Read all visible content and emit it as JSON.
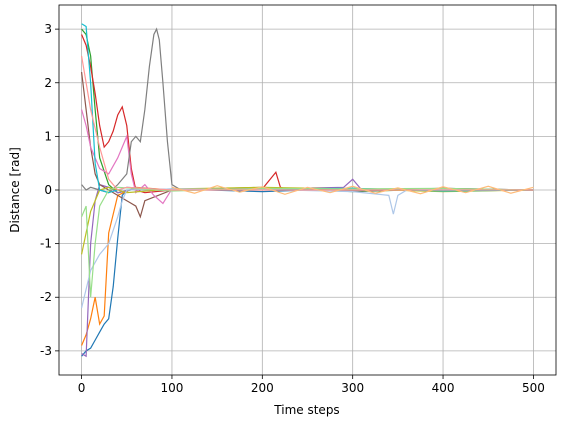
{
  "chart_data": {
    "type": "line",
    "xlabel": "Time steps",
    "ylabel": "Distance [rad]",
    "xlim": [
      -25,
      525
    ],
    "ylim": [
      -3.45,
      3.45
    ],
    "xticks": [
      0,
      100,
      200,
      300,
      400,
      500
    ],
    "yticks": [
      -3,
      -2,
      -1,
      0,
      1,
      2,
      3
    ],
    "grid": true,
    "series": [
      {
        "color": "#1f77b4",
        "x": [
          0,
          5,
          10,
          15,
          20,
          25,
          30,
          35,
          40,
          45,
          50,
          100,
          200,
          300,
          400,
          500
        ],
        "values": [
          -3.1,
          -3.0,
          -2.95,
          -2.8,
          -2.65,
          -2.5,
          -2.4,
          -1.8,
          -0.9,
          -0.1,
          0,
          0.02,
          -0.03,
          0.03,
          -0.02,
          0
        ]
      },
      {
        "color": "#ff7f0e",
        "x": [
          0,
          5,
          10,
          15,
          20,
          25,
          30,
          40,
          60,
          100,
          200,
          300,
          400,
          500
        ],
        "values": [
          -2.9,
          -2.7,
          -2.4,
          -2.0,
          -2.5,
          -2.35,
          -0.8,
          -0.1,
          0.05,
          0,
          0.03,
          -0.02,
          0.02,
          0
        ]
      },
      {
        "color": "#2ca02c",
        "x": [
          0,
          5,
          10,
          15,
          20,
          30,
          40,
          60,
          100,
          200,
          300,
          400,
          500
        ],
        "values": [
          3.0,
          2.9,
          2.5,
          1.5,
          0.6,
          0.1,
          -0.05,
          0.02,
          0,
          0.05,
          -0.03,
          0.02,
          0
        ]
      },
      {
        "color": "#d62728",
        "x": [
          0,
          5,
          10,
          15,
          20,
          25,
          30,
          35,
          40,
          45,
          50,
          55,
          60,
          70,
          100,
          200,
          215,
          220,
          230,
          300,
          500
        ],
        "values": [
          2.9,
          2.7,
          2.3,
          1.8,
          1.2,
          0.8,
          0.9,
          1.1,
          1.4,
          1.55,
          1.2,
          0.4,
          0.0,
          -0.05,
          0,
          0.02,
          0.33,
          0.05,
          0,
          0.02,
          0
        ]
      },
      {
        "color": "#9467bd",
        "x": [
          0,
          5,
          10,
          15,
          20,
          30,
          40,
          60,
          100,
          200,
          290,
          300,
          310,
          400,
          500
        ],
        "values": [
          -3.05,
          -3.1,
          -1.0,
          -0.2,
          0.1,
          0.05,
          -0.05,
          0.03,
          0,
          0.02,
          0.05,
          0.2,
          0,
          0.03,
          0
        ]
      },
      {
        "color": "#8c564b",
        "x": [
          0,
          5,
          10,
          15,
          20,
          30,
          50,
          60,
          65,
          70,
          100,
          200,
          300,
          400,
          500
        ],
        "values": [
          2.2,
          1.5,
          0.8,
          0.3,
          0.1,
          0,
          -0.2,
          -0.3,
          -0.5,
          -0.2,
          0,
          0.02,
          -0.02,
          0.03,
          0
        ]
      },
      {
        "color": "#e377c2",
        "x": [
          0,
          5,
          10,
          20,
          30,
          40,
          50,
          55,
          60,
          70,
          80,
          90,
          100,
          200,
          300,
          400,
          500
        ],
        "values": [
          1.5,
          1.2,
          0.8,
          0.4,
          0.3,
          0.6,
          1.0,
          0.3,
          -0.05,
          0.1,
          -0.1,
          -0.25,
          0.02,
          0.03,
          -0.02,
          0.02,
          0
        ]
      },
      {
        "color": "#7f7f7f",
        "x": [
          0,
          5,
          10,
          20,
          30,
          40,
          50,
          55,
          60,
          65,
          70,
          75,
          80,
          83,
          86,
          90,
          95,
          100,
          110,
          200,
          300,
          400,
          500
        ],
        "values": [
          0.1,
          0,
          0.05,
          0,
          -0.05,
          0.1,
          0.3,
          0.9,
          1.0,
          0.9,
          1.5,
          2.3,
          2.9,
          3.0,
          2.8,
          2.0,
          0.9,
          0.1,
          0,
          0.02,
          -0.02,
          0.02,
          0
        ]
      },
      {
        "color": "#bcbd22",
        "x": [
          0,
          5,
          10,
          15,
          20,
          30,
          50,
          100,
          200,
          300,
          400,
          500
        ],
        "values": [
          -1.2,
          -0.8,
          -0.4,
          -0.2,
          0,
          0.05,
          -0.05,
          0.02,
          0.05,
          0.02,
          -0.03,
          0
        ]
      },
      {
        "color": "#17becf",
        "x": [
          0,
          5,
          10,
          15,
          20,
          30,
          50,
          100,
          200,
          300,
          400,
          500
        ],
        "values": [
          3.1,
          3.05,
          2.0,
          0.5,
          0,
          -0.05,
          0.05,
          0,
          0.02,
          0.03,
          -0.02,
          0
        ]
      },
      {
        "color": "#aec7e8",
        "x": [
          0,
          10,
          20,
          30,
          40,
          45,
          50,
          100,
          200,
          300,
          340,
          345,
          350,
          360,
          400,
          500
        ],
        "values": [
          -2.2,
          -1.5,
          -1.2,
          -1.0,
          -0.5,
          -0.2,
          0,
          0.02,
          0.01,
          -0.03,
          -0.1,
          -0.45,
          -0.1,
          0,
          0.02,
          0
        ]
      },
      {
        "color": "#98df8a",
        "x": [
          0,
          5,
          10,
          15,
          20,
          30,
          40,
          100,
          200,
          300,
          400,
          500
        ],
        "values": [
          -0.5,
          -0.3,
          -2.0,
          -1.0,
          -0.3,
          0,
          0.05,
          -0.02,
          0.03,
          0.02,
          0.03,
          0
        ]
      },
      {
        "color": "#ff9896",
        "x": [
          0,
          5,
          10,
          20,
          30,
          40,
          50,
          100,
          500
        ],
        "values": [
          2.5,
          2.0,
          1.5,
          0.8,
          0.2,
          0,
          0.05,
          0,
          0
        ]
      },
      {
        "color": "#ffbb78",
        "x": [
          100,
          125,
          150,
          175,
          200,
          225,
          250,
          275,
          300,
          325,
          350,
          375,
          400,
          425,
          450,
          475,
          500
        ],
        "values": [
          0.05,
          -0.06,
          0.08,
          -0.04,
          0.06,
          -0.08,
          0.05,
          -0.05,
          0.07,
          -0.06,
          0.04,
          -0.07,
          0.06,
          -0.05,
          0.07,
          -0.06,
          0.05
        ]
      }
    ]
  }
}
